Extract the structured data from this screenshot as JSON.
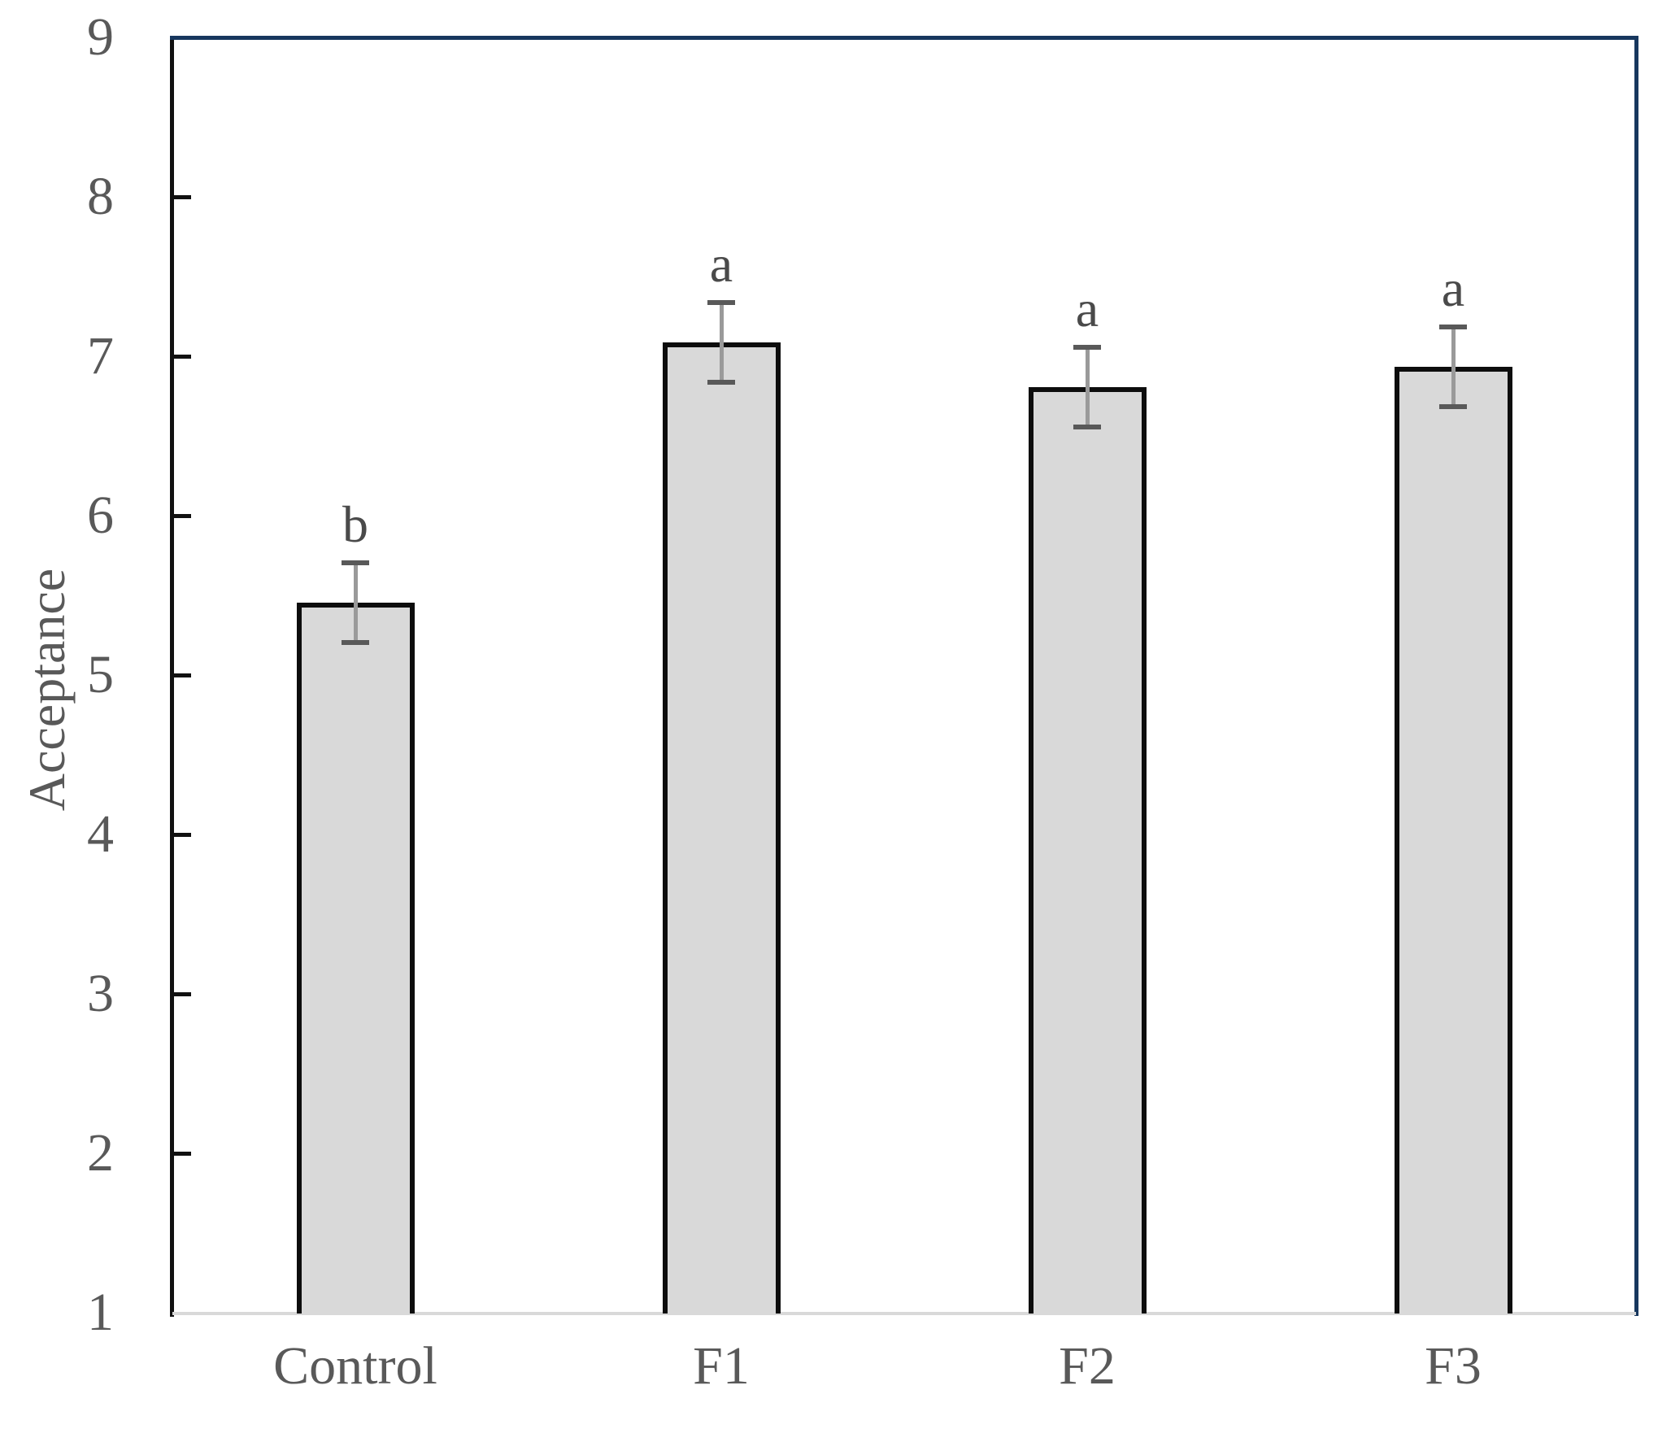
{
  "chart_data": {
    "type": "bar",
    "title": "",
    "xlabel": "",
    "ylabel": "Acceptance",
    "categories": [
      "Control",
      "F1",
      "F2",
      "F3"
    ],
    "values": [
      5.46,
      7.09,
      6.81,
      6.94
    ],
    "errors": [
      0.25,
      0.25,
      0.25,
      0.25
    ],
    "sig_letters": [
      "b",
      "a",
      "a",
      "a"
    ],
    "ylim": [
      1,
      9
    ],
    "yticks": [
      1,
      2,
      3,
      4,
      5,
      6,
      7,
      8,
      9
    ],
    "grid": false,
    "legend_position": "none",
    "bar_fill_color": "#d9d9d9",
    "bar_border_color": "#0d0d0d",
    "error_bar_line_color": "#9a9a9a",
    "error_bar_cap_color": "#595959",
    "axis_line_color": "#111111",
    "plot_border_color": "#17375e",
    "baseline_color": "#d9d9d9",
    "label_text_color": "#595959",
    "letter_text_color": "#4a4a4a"
  }
}
